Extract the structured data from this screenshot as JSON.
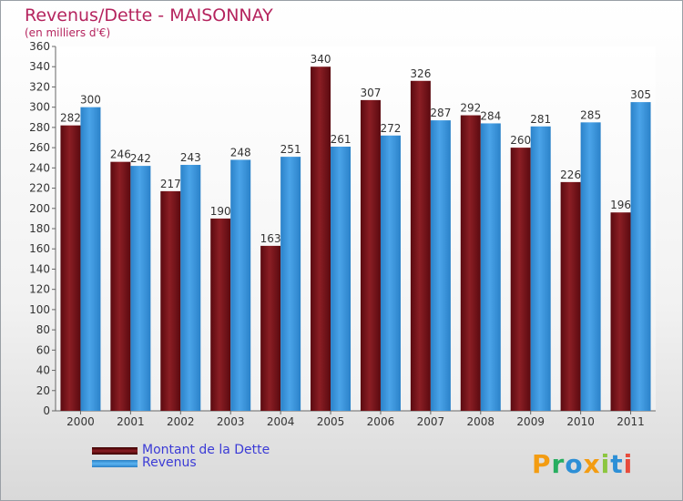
{
  "chart_data": {
    "type": "bar",
    "title": "Revenus/Dette - MAISONNAY",
    "subtitle": "(en milliers d'€)",
    "categories": [
      "2000",
      "2001",
      "2002",
      "2003",
      "2004",
      "2005",
      "2006",
      "2007",
      "2008",
      "2009",
      "2010",
      "2011"
    ],
    "series": [
      {
        "name": "Montant de la Dette",
        "color": "#8b1e24",
        "values": [
          282,
          246,
          217,
          190,
          163,
          340,
          307,
          326,
          292,
          260,
          226,
          196
        ]
      },
      {
        "name": "Revenus",
        "color": "#4aa3e8",
        "values": [
          300,
          242,
          243,
          248,
          251,
          261,
          272,
          287,
          284,
          281,
          285,
          305
        ]
      }
    ],
    "ylim": [
      0,
      360
    ],
    "ytick_step": 20,
    "grid": false,
    "legend_position": "bottom-left"
  },
  "branding": {
    "logo_letters": [
      "P",
      "r",
      "o",
      "x",
      "i",
      "t",
      "i"
    ],
    "logo_colors": [
      "#f39c12",
      "#27ae60",
      "#2d8fd6",
      "#f39c12",
      "#8cc63f",
      "#2d8fd6",
      "#e74c3c"
    ]
  }
}
